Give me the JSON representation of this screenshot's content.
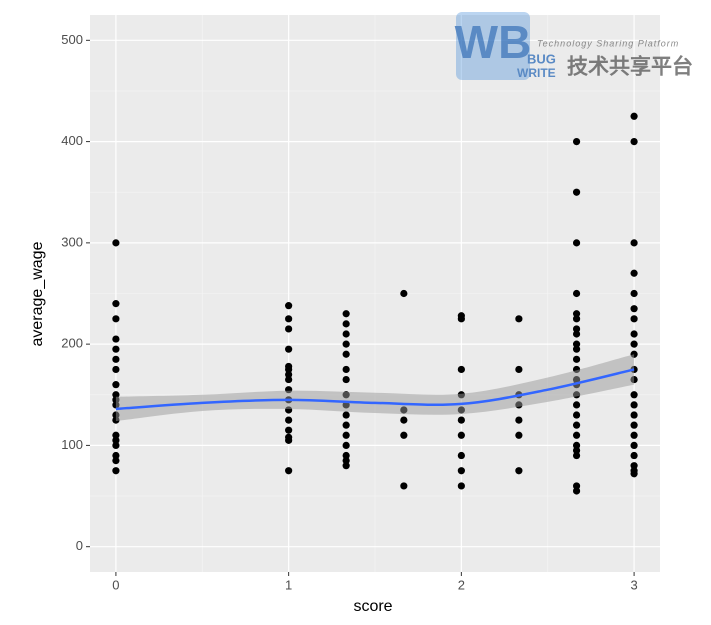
{
  "chart_data": {
    "type": "scatter",
    "x_label": "score",
    "y_label": "average_wage",
    "xlim": [
      -0.15,
      3.15
    ],
    "ylim": [
      -25,
      525
    ],
    "xticks": [
      0,
      1,
      2,
      3
    ],
    "yticks": [
      0,
      100,
      200,
      300,
      400,
      500
    ],
    "grid": true,
    "points": {
      "color": "#000000",
      "x": [
        0,
        0,
        0,
        0,
        0,
        0,
        0,
        0,
        0,
        0,
        0,
        0,
        0,
        0,
        0,
        0,
        0,
        0,
        0,
        1,
        1,
        1,
        1,
        1,
        1,
        1,
        1,
        1,
        1,
        1,
        1,
        1,
        1,
        1,
        1,
        1.333,
        1.333,
        1.333,
        1.333,
        1.333,
        1.333,
        1.333,
        1.333,
        1.333,
        1.333,
        1.333,
        1.333,
        1.333,
        1.333,
        1.333,
        1.333,
        1.667,
        1.667,
        1.667,
        1.667,
        1.667,
        2,
        2,
        2,
        2,
        2,
        2,
        2,
        2,
        2,
        2,
        2.333,
        2.333,
        2.333,
        2.333,
        2.333,
        2.333,
        2.333,
        2.667,
        2.667,
        2.667,
        2.667,
        2.667,
        2.667,
        2.667,
        2.667,
        2.667,
        2.667,
        2.667,
        2.667,
        2.667,
        2.667,
        2.667,
        2.667,
        2.667,
        2.667,
        2.667,
        2.667,
        2.667,
        2.667,
        2.667,
        2.667,
        3,
        3,
        3,
        3,
        3,
        3,
        3,
        3,
        3,
        3,
        3,
        3,
        3,
        3,
        3,
        3,
        3,
        3,
        3,
        3,
        3,
        3
      ],
      "values": [
        300,
        240,
        225,
        205,
        195,
        185,
        175,
        160,
        150,
        145,
        140,
        130,
        125,
        110,
        105,
        100,
        90,
        85,
        75,
        238,
        225,
        215,
        195,
        178,
        175,
        170,
        165,
        155,
        145,
        135,
        125,
        115,
        108,
        105,
        75,
        230,
        220,
        210,
        200,
        190,
        175,
        165,
        150,
        140,
        130,
        120,
        110,
        100,
        90,
        85,
        80,
        250,
        135,
        125,
        110,
        60,
        228,
        225,
        175,
        150,
        135,
        125,
        110,
        90,
        75,
        60,
        225,
        175,
        150,
        140,
        125,
        110,
        75,
        400,
        350,
        300,
        250,
        230,
        225,
        215,
        210,
        200,
        195,
        185,
        175,
        165,
        160,
        150,
        140,
        130,
        120,
        110,
        100,
        95,
        90,
        60,
        55,
        425,
        400,
        300,
        270,
        250,
        235,
        225,
        210,
        200,
        190,
        175,
        165,
        150,
        140,
        130,
        120,
        110,
        100,
        90,
        80,
        75,
        72
      ]
    },
    "smooth": {
      "color": "#3366ff",
      "band_color": "#999999",
      "x": [
        0,
        0.5,
        1,
        1.5,
        2,
        2.5,
        3
      ],
      "values": [
        136,
        142,
        145,
        142,
        141,
        155,
        175
      ],
      "lower": [
        124,
        134,
        136,
        132,
        131,
        143,
        160
      ],
      "upper": [
        148,
        150,
        154,
        152,
        151,
        167,
        190
      ]
    }
  },
  "watermark": {
    "logo": "WB",
    "bug": "BUG",
    "write": "WRITE",
    "tagline": "Technology Sharing Platform",
    "cn": "技术共享平台"
  }
}
